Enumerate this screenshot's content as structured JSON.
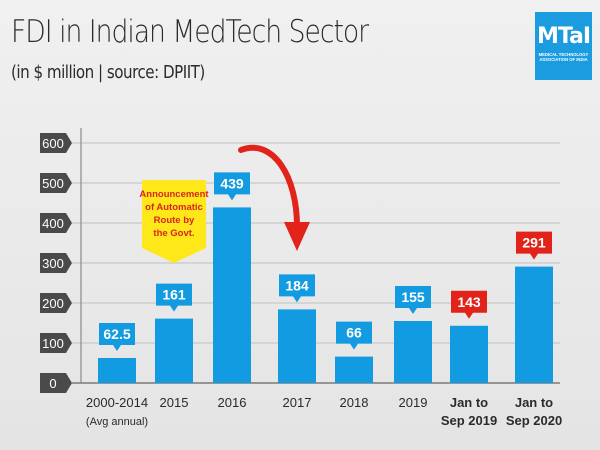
{
  "header": {
    "title": "FDI in Indian MedTech Sector",
    "subtitle": "(in $ million | source: DPIIT)"
  },
  "logo": {
    "mark": "MTaI",
    "line1": "MEDICAL TECHNOLOGY",
    "line2": "ASSOCIATION OF INDIA",
    "color": "#1b9be0"
  },
  "colors": {
    "bar": "#129be0",
    "label_blue": "#129be0",
    "label_red": "#e2231a",
    "tick_box": "#4a4a4a",
    "grid": "#c8c8c8",
    "annotation_bg": "#ffe81a",
    "annotation_text": "#d9241c",
    "arrow": "#e2231a"
  },
  "chart_data": {
    "type": "bar",
    "title": "FDI in Indian MedTech Sector",
    "subtitle": "(in $ million | source: DPIIT)",
    "xlabel": "",
    "ylabel": "",
    "ylim": [
      0,
      600
    ],
    "yticks": [
      0,
      100,
      200,
      300,
      400,
      500,
      600
    ],
    "grid": true,
    "legend": "none",
    "categories": [
      {
        "line1": "2000-2014",
        "line2": "(Avg annual)",
        "bold": false
      },
      {
        "line1": "2015",
        "line2": "",
        "bold": false
      },
      {
        "line1": "2016",
        "line2": "",
        "bold": false
      },
      {
        "line1": "2017",
        "line2": "",
        "bold": false
      },
      {
        "line1": "2018",
        "line2": "",
        "bold": false
      },
      {
        "line1": "2019",
        "line2": "",
        "bold": false
      },
      {
        "line1": "Jan to",
        "line2": "Sep 2019",
        "bold": true
      },
      {
        "line1": "Jan to",
        "line2": "Sep 2020",
        "bold": true
      }
    ],
    "values": [
      62.5,
      161,
      439,
      184,
      66,
      155,
      143,
      291
    ],
    "value_labels": [
      "62.5",
      "161",
      "439",
      "184",
      "66",
      "155",
      "143",
      "291"
    ],
    "label_colors": [
      "blue",
      "blue",
      "blue",
      "blue",
      "blue",
      "blue",
      "red",
      "red"
    ],
    "annotations": [
      {
        "text": [
          "Announcement",
          "of Automatic",
          "Route by",
          "the Govt."
        ],
        "category_index": 1,
        "style": "yellow-callout"
      },
      {
        "text": "",
        "from_category": 2,
        "to_category": 3,
        "style": "red-curved-arrow"
      }
    ]
  }
}
